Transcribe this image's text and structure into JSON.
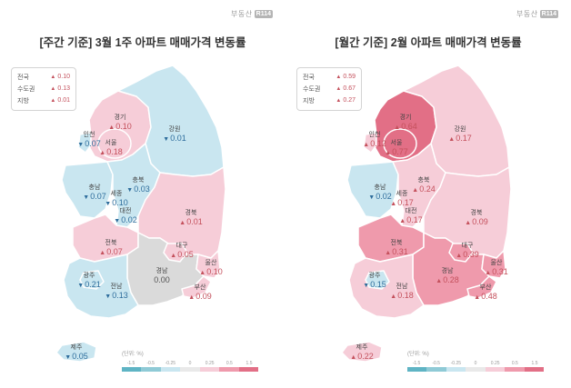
{
  "brand": {
    "text": "부동산",
    "logo": "R114"
  },
  "colors": {
    "sky": "#c9e6f0",
    "light_pink": "#f6cdd8",
    "mid_pink": "#ef9aac",
    "dark_pink": "#e26f86",
    "gray": "#dadada",
    "down_text": "#2e6d9c",
    "up_text": "#c4505c"
  },
  "panels": [
    {
      "title": "[주간 기준] 3월 1주 아파트 매매가격 변동률",
      "summary": [
        {
          "name": "전국",
          "value": "0.10",
          "dir": "up"
        },
        {
          "name": "수도권",
          "value": "0.13",
          "dir": "up"
        },
        {
          "name": "지방",
          "value": "0.01",
          "dir": "up"
        }
      ],
      "regions": {
        "gyeonggi": {
          "name": "경기",
          "value": "0.10",
          "dir": "up",
          "fill": "#f6cdd8"
        },
        "seoul": {
          "name": "서울",
          "value": "0.18",
          "dir": "up",
          "fill": "#f6cdd8"
        },
        "incheon": {
          "name": "인천",
          "value": "0.07",
          "dir": "down",
          "fill": "#c9e6f0"
        },
        "gangwon": {
          "name": "강원",
          "value": "0.01",
          "dir": "down",
          "fill": "#c9e6f0"
        },
        "chungbuk": {
          "name": "충북",
          "value": "0.03",
          "dir": "down",
          "fill": "#c9e6f0"
        },
        "chungnam": {
          "name": "충남",
          "value": "0.07",
          "dir": "down",
          "fill": "#c9e6f0"
        },
        "sejong": {
          "name": "세종",
          "value": "0.10",
          "dir": "down",
          "fill": "#c9e6f0"
        },
        "daejeon": {
          "name": "대전",
          "value": "0.02",
          "dir": "down",
          "fill": "#c9e6f0"
        },
        "gyeongbuk": {
          "name": "경북",
          "value": "0.01",
          "dir": "up",
          "fill": "#f6cdd8"
        },
        "jeonbuk": {
          "name": "전북",
          "value": "0.07",
          "dir": "up",
          "fill": "#f6cdd8"
        },
        "daegu": {
          "name": "대구",
          "value": "0.05",
          "dir": "up",
          "fill": "#f6cdd8"
        },
        "ulsan": {
          "name": "울산",
          "value": "0.10",
          "dir": "up",
          "fill": "#f6cdd8"
        },
        "gyeongnam": {
          "name": "경남",
          "value": "0.00",
          "dir": "flat",
          "fill": "#dadada"
        },
        "busan": {
          "name": "부산",
          "value": "0.09",
          "dir": "up",
          "fill": "#f6cdd8"
        },
        "gwangju": {
          "name": "광주",
          "value": "0.21",
          "dir": "down",
          "fill": "#c9e6f0"
        },
        "jeonnam": {
          "name": "전남",
          "value": "0.13",
          "dir": "down",
          "fill": "#c9e6f0"
        },
        "jeju": {
          "name": "제주",
          "value": "0.05",
          "dir": "down",
          "fill": "#c9e6f0"
        }
      }
    },
    {
      "title": "[월간 기준] 2월 아파트 매매가격 변동률",
      "summary": [
        {
          "name": "전국",
          "value": "0.59",
          "dir": "up"
        },
        {
          "name": "수도권",
          "value": "0.67",
          "dir": "up"
        },
        {
          "name": "지방",
          "value": "0.27",
          "dir": "up"
        }
      ],
      "regions": {
        "gyeonggi": {
          "name": "경기",
          "value": "0.64",
          "dir": "up",
          "fill": "#e26f86"
        },
        "seoul": {
          "name": "서울",
          "value": "0.77",
          "dir": "up",
          "fill": "#e26f86"
        },
        "incheon": {
          "name": "인천",
          "value": "0.12",
          "dir": "up",
          "fill": "#f6cdd8"
        },
        "gangwon": {
          "name": "강원",
          "value": "0.17",
          "dir": "up",
          "fill": "#f6cdd8"
        },
        "chungbuk": {
          "name": "충북",
          "value": "0.24",
          "dir": "up",
          "fill": "#f6cdd8"
        },
        "chungnam": {
          "name": "충남",
          "value": "0.02",
          "dir": "down",
          "fill": "#c9e6f0"
        },
        "sejong": {
          "name": "세종",
          "value": "0.17",
          "dir": "up",
          "fill": "#f6cdd8"
        },
        "daejeon": {
          "name": "대전",
          "value": "0.17",
          "dir": "up",
          "fill": "#f6cdd8"
        },
        "gyeongbuk": {
          "name": "경북",
          "value": "0.09",
          "dir": "up",
          "fill": "#f6cdd8"
        },
        "jeonbuk": {
          "name": "전북",
          "value": "0.31",
          "dir": "up",
          "fill": "#ef9aac"
        },
        "daegu": {
          "name": "대구",
          "value": "0.39",
          "dir": "up",
          "fill": "#ef9aac"
        },
        "ulsan": {
          "name": "울산",
          "value": "0.31",
          "dir": "up",
          "fill": "#ef9aac"
        },
        "gyeongnam": {
          "name": "경남",
          "value": "0.28",
          "dir": "up",
          "fill": "#ef9aac"
        },
        "busan": {
          "name": "부산",
          "value": "0.48",
          "dir": "up",
          "fill": "#ef9aac"
        },
        "gwangju": {
          "name": "광주",
          "value": "0.15",
          "dir": "down",
          "fill": "#c9e6f0"
        },
        "jeonnam": {
          "name": "전남",
          "value": "0.18",
          "dir": "up",
          "fill": "#f6cdd8"
        },
        "jeju": {
          "name": "제주",
          "value": "0.22",
          "dir": "up",
          "fill": "#f6cdd8"
        }
      }
    }
  ],
  "legend": {
    "unit": "(단위: %)",
    "ticks": [
      "-1.5",
      "-0.5",
      "-0.25",
      "0",
      "0.25",
      "0.5",
      "1.5"
    ],
    "colors": [
      "#5fb4c4",
      "#8fcad6",
      "#c9e6f0",
      "#e9e9e9",
      "#f6cdd8",
      "#ef9aac",
      "#e26f86"
    ]
  }
}
